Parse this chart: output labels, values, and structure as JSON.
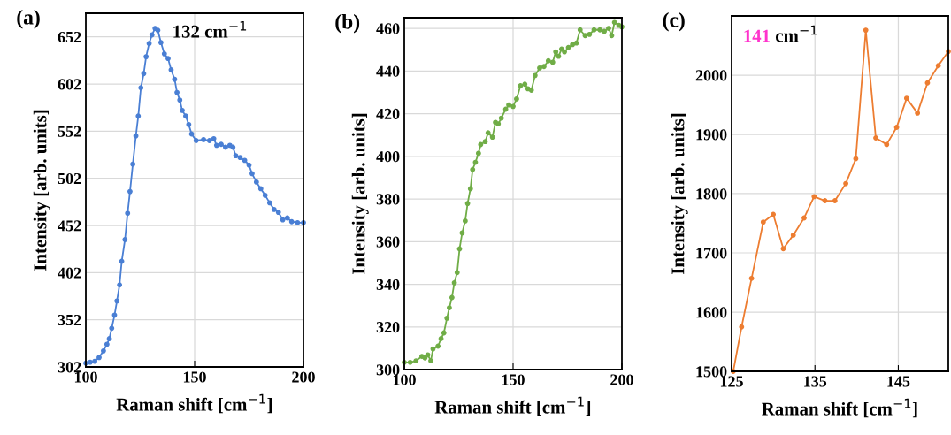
{
  "chart_data": [
    {
      "type": "line",
      "title": "(a)",
      "xlabel": "Raman shift [cm$^{−1}$]",
      "ylabel": "Intensity [arb. units]",
      "annotations": [
        {
          "text": "132 cm$^{−1}$",
          "x": 131.8,
          "y": 661
        }
      ],
      "x": [
        100,
        102,
        104.1,
        106.1,
        108.1,
        109.7,
        110.8,
        111.9,
        113.2,
        114.3,
        115.5,
        116.5,
        118,
        119.2,
        120.3,
        121.6,
        123,
        124.1,
        125.3,
        126.6,
        127.7,
        129.1,
        130.4,
        131.8,
        133.1,
        134.5,
        136.1,
        137.8,
        139.2,
        140.8,
        141.9,
        143.2,
        144.3,
        145.9,
        147.3,
        148.6,
        150.7,
        154.1,
        156.8,
        158.8,
        160.1,
        162.2,
        164.2,
        166.2,
        167.6,
        168.9,
        170.9,
        173,
        175,
        176.4,
        178.4,
        180.4,
        182.4,
        184.5,
        186.5,
        188.5,
        190.5,
        192.6,
        194.6,
        197.3,
        200
      ],
      "series": [
        {
          "color": "#4a7fd4",
          "values": [
            306,
            307,
            308,
            312,
            319,
            326,
            332,
            343,
            357,
            372,
            389,
            414,
            437,
            465,
            488,
            517,
            547,
            568,
            598,
            613,
            631,
            645,
            654,
            661,
            659,
            646,
            634,
            629,
            617,
            607,
            593,
            585,
            574,
            568,
            559,
            549,
            542,
            543,
            542,
            544,
            537,
            538,
            535,
            537,
            535,
            526,
            524,
            521,
            516,
            507,
            498,
            491,
            484,
            476,
            469,
            466,
            458,
            460,
            456,
            455,
            455
          ]
        }
      ],
      "xlim": [
        100,
        200
      ],
      "ylim": [
        302,
        677
      ],
      "xticks": [
        100,
        150,
        200
      ],
      "yticks": [
        302,
        352,
        402,
        452,
        502,
        552,
        602,
        652
      ],
      "grid": true,
      "marker": "circle",
      "line_style": "solid"
    },
    {
      "type": "line",
      "title": "(b)",
      "xlabel": "Raman shift [cm$^{−1}$]",
      "ylabel": "Intensity [arb. units]",
      "x": [
        100,
        102.7,
        105.4,
        108.1,
        109.5,
        110.8,
        112.2,
        113.2,
        115.5,
        116.9,
        118.2,
        119.6,
        120.7,
        121.9,
        123,
        124.3,
        125.4,
        126.6,
        128,
        129.1,
        130.4,
        131.4,
        132.7,
        134.1,
        135.1,
        137.2,
        138.5,
        140.5,
        141.9,
        143.2,
        144.6,
        146.6,
        148,
        150,
        151.6,
        153.4,
        155.4,
        156.8,
        158.4,
        160.1,
        162.2,
        164.2,
        166.2,
        168.2,
        169.6,
        170.9,
        172.3,
        173.6,
        175.4,
        177.3,
        179.1,
        180.8,
        183.1,
        185.1,
        187.2,
        189.9,
        191.9,
        193.9,
        195.3,
        196.6,
        198.6,
        200
      ],
      "series": [
        {
          "color": "#70ad47",
          "values": [
            303.4,
            303.4,
            304.1,
            306.2,
            305.5,
            306.9,
            304.1,
            309.7,
            311,
            314.5,
            317.2,
            324.1,
            329,
            333.8,
            340.7,
            345.5,
            356.6,
            364.1,
            369.7,
            377.9,
            384.8,
            393.8,
            397.2,
            401.4,
            405.5,
            406.9,
            411,
            409,
            415.9,
            415.2,
            417.9,
            422.1,
            424.1,
            423.4,
            426.9,
            433.1,
            433.8,
            431.7,
            431,
            437.9,
            441.4,
            442.1,
            444.8,
            444.1,
            449,
            446.9,
            450.3,
            449,
            451,
            452.4,
            453.1,
            459.3,
            456.6,
            457.2,
            459.3,
            459.3,
            458.6,
            460,
            456.6,
            462.8,
            461.4,
            460.7
          ]
        }
      ],
      "xlim": [
        100,
        200
      ],
      "ylim": [
        300,
        465
      ],
      "xticks": [
        100,
        150,
        200
      ],
      "yticks": [
        300,
        320,
        340,
        360,
        380,
        400,
        420,
        440,
        460
      ],
      "grid": true,
      "marker": "circle",
      "line_style": "solid"
    },
    {
      "type": "line",
      "title": "(c)",
      "xlabel": "Raman shift [cm$^{−1}$]",
      "ylabel": "Intensity [arb. units]",
      "annotations": [
        {
          "text": "141 cm$^{−1}$",
          "x": 141.1,
          "y": 2076
        }
      ],
      "x": [
        125.2,
        126.2,
        127.4,
        128.8,
        130,
        131.2,
        132.4,
        133.7,
        134.9,
        136.2,
        137.4,
        138.7,
        139.9,
        141.1,
        142.3,
        143.6,
        144.8,
        146,
        147.3,
        148.5,
        149.8,
        151
      ],
      "series": [
        {
          "color": "#ed7d31",
          "values": [
            1500,
            1575,
            1657,
            1752,
            1765,
            1707,
            1730,
            1759,
            1795,
            1788,
            1788,
            1817,
            1859,
            2076,
            1894,
            1883,
            1912,
            1961,
            1936,
            1987,
            2016,
            2040
          ]
        }
      ],
      "xlim": [
        125,
        151
      ],
      "ylim": [
        1500,
        2100
      ],
      "xticks": [
        125,
        135,
        145
      ],
      "yticks": [
        1500,
        1600,
        1700,
        1800,
        1900,
        2000
      ],
      "grid": true,
      "marker": "circle",
      "line_style": "solid"
    }
  ]
}
